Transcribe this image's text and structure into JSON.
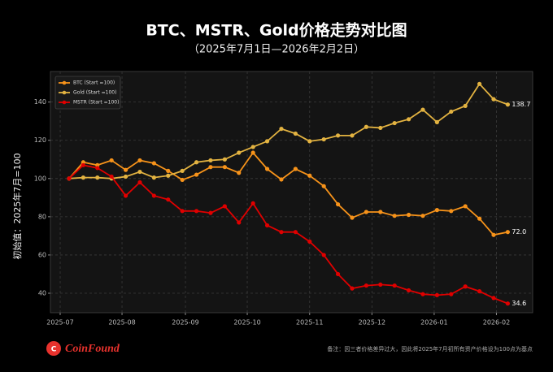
{
  "chart_data": {
    "type": "line",
    "title": "BTC、MSTR、Gold价格走势对比图",
    "subtitle": "（2025年7月1日—2026年2月2日）",
    "y_label": "初始值：2025年7月=100",
    "note": "备注：因三者价格差异过大，因此将2025年7月初所有资产价格设为100点为基点",
    "logo": "CoinFound",
    "categories": [
      null,
      null,
      null,
      null,
      null,
      null,
      null,
      null,
      null,
      null,
      null,
      null,
      null,
      null,
      null,
      null,
      null,
      null,
      null,
      null,
      null,
      null,
      null,
      null,
      null,
      null,
      null,
      null,
      null,
      null,
      null,
      null
    ],
    "xlim": [
      -1.32,
      32.76
    ],
    "xticks": [
      {
        "value": -0.63,
        "label": "2025-07"
      },
      {
        "value": 3.74,
        "label": "2025-08"
      },
      {
        "value": 8.22,
        "label": "2025-09"
      },
      {
        "value": 12.59,
        "label": "2025-10"
      },
      {
        "value": 17.0,
        "label": "2025-11"
      },
      {
        "value": 21.4,
        "label": "2025-12"
      },
      {
        "value": 25.8,
        "label": "2026-01"
      },
      {
        "value": 30.2,
        "label": "2026-02"
      }
    ],
    "ylim": [
      29.8,
      156
    ],
    "yticks": [
      40,
      60,
      80,
      100,
      120,
      140
    ],
    "grid": true,
    "legend": "upper left",
    "series": [
      {
        "name": "BTC (Start =100)",
        "color": "#f7931a",
        "values": [
          100,
          108.5,
          107,
          109.5,
          104.5,
          109.5,
          108,
          104,
          99.3,
          102,
          106,
          106,
          103,
          113.5,
          105,
          99.5,
          105,
          101.5,
          96,
          86.5,
          79.5,
          82.5,
          82.5,
          80.5,
          81,
          80.5,
          83.5,
          83,
          85.5,
          79,
          70.5,
          72.0
        ],
        "value_labels": [
          null,
          null,
          null,
          null,
          null,
          null,
          null,
          null,
          null,
          null,
          null,
          null,
          null,
          null,
          null,
          null,
          null,
          null,
          null,
          null,
          null,
          null,
          null,
          null,
          null,
          null,
          null,
          null,
          null,
          null,
          null,
          "72.0"
        ]
      },
      {
        "name": "Gold (Start =100)",
        "color": "#e3b341",
        "values": [
          100,
          100.5,
          100.5,
          100,
          101,
          103.5,
          100.5,
          101.5,
          104,
          108.5,
          109.5,
          110,
          113.5,
          116.5,
          119.5,
          126,
          123.5,
          119.5,
          120.5,
          122.5,
          122.5,
          127,
          126.5,
          129,
          131,
          136,
          129.5,
          135,
          138,
          149.5,
          141.5,
          138.7
        ],
        "value_labels": [
          null,
          null,
          null,
          null,
          null,
          null,
          null,
          null,
          null,
          null,
          null,
          null,
          null,
          null,
          null,
          null,
          null,
          null,
          null,
          null,
          null,
          null,
          null,
          null,
          null,
          null,
          null,
          null,
          null,
          null,
          null,
          "138.7"
        ]
      },
      {
        "name": "MSTR (Start =100)",
        "color": "#e00000",
        "values": [
          100,
          107,
          105.5,
          101,
          91,
          98,
          91,
          89,
          83,
          83,
          82,
          85.5,
          77,
          87,
          75.5,
          72,
          72,
          67,
          60,
          50,
          42.5,
          44,
          44.5,
          44,
          41.5,
          39.5,
          39,
          39.5,
          43.5,
          41,
          37.5,
          34.6
        ],
        "value_labels": [
          null,
          null,
          null,
          null,
          null,
          null,
          null,
          null,
          null,
          null,
          null,
          null,
          null,
          null,
          null,
          null,
          null,
          null,
          null,
          null,
          null,
          null,
          null,
          null,
          null,
          null,
          null,
          null,
          null,
          null,
          null,
          "34.6"
        ]
      }
    ]
  }
}
